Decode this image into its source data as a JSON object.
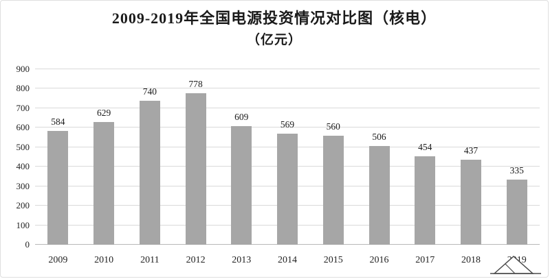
{
  "chart_data": {
    "type": "bar",
    "title": "2009-2019年全国电源投资情况对比图（核电）",
    "subtitle": "（亿元）",
    "categories": [
      "2009",
      "2010",
      "2011",
      "2012",
      "2013",
      "2014",
      "2015",
      "2016",
      "2017",
      "2018",
      "2019"
    ],
    "values": [
      584,
      629,
      740,
      778,
      609,
      569,
      560,
      506,
      454,
      437,
      335
    ],
    "xlabel": "",
    "ylabel": "",
    "ylim": [
      0,
      900
    ],
    "ytick_step": 100,
    "grid": true,
    "legend_position": "none",
    "bar_color": "#a6a6a6",
    "gridline_color": "#d9d9d9",
    "baseline_color": "#b8b8b8",
    "label_color": "#1a1a1a"
  },
  "icons": {
    "watermark": "mountain-sketch-icon"
  }
}
